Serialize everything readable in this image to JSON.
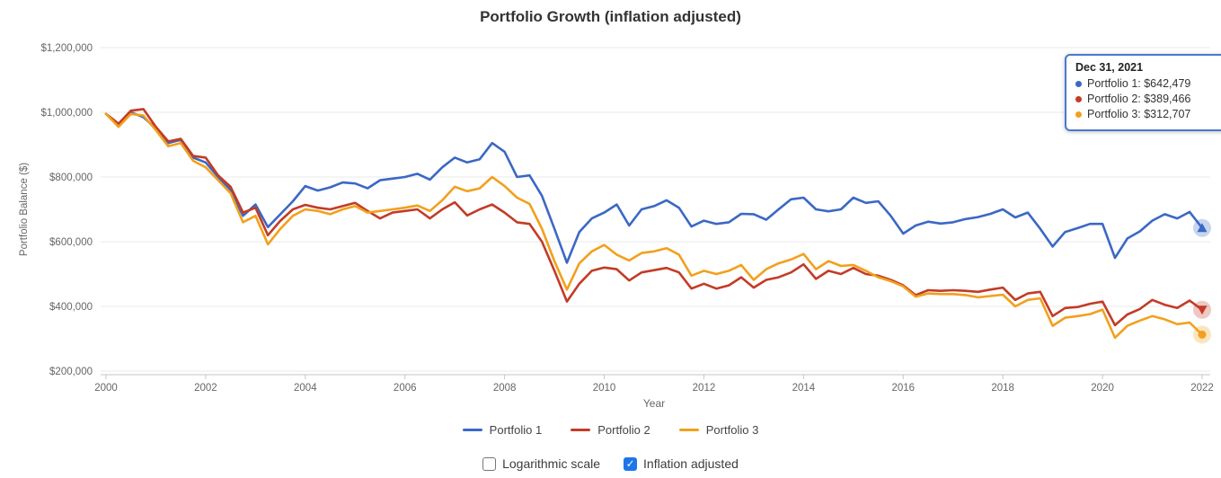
{
  "title": "Portfolio Growth (inflation adjusted)",
  "colors": {
    "grid": "#e8e8e8",
    "axis_line": "#c6c6c6",
    "tick_text": "#666666",
    "tooltip_border": "#4a79cf",
    "checkbox_checked": "#1e76e8"
  },
  "tooltip": {
    "date": "Dec 31, 2021",
    "rows": [
      "Portfolio 1: $642,479",
      "Portfolio 2: $389,466",
      "Portfolio 3: $312,707"
    ]
  },
  "controls": {
    "logarithmic": {
      "label": "Logarithmic scale",
      "checked": false
    },
    "inflation": {
      "label": "Inflation adjusted",
      "checked": true
    }
  },
  "chart_data": {
    "type": "line",
    "title": "Portfolio Growth (inflation adjusted)",
    "xlabel": "Year",
    "ylabel": "Portfolio Balance ($)",
    "xlim": [
      2000,
      2022
    ],
    "ylim": [
      200000,
      1200000
    ],
    "x_start": 2000,
    "x_step": 0.25,
    "x_ticks": [
      2000,
      2002,
      2004,
      2006,
      2008,
      2010,
      2012,
      2014,
      2016,
      2018,
      2020,
      2022
    ],
    "x_tick_labels": [
      "2000",
      "2002",
      "2004",
      "2006",
      "2008",
      "2010",
      "2012",
      "2014",
      "2016",
      "2018",
      "2020",
      "2022"
    ],
    "y_ticks": [
      200000,
      400000,
      600000,
      800000,
      1000000,
      1200000
    ],
    "y_tick_labels": [
      "$200,000",
      "$400,000",
      "$600,000",
      "$800,000",
      "$1,000,000",
      "$1,200,000"
    ],
    "grid": true,
    "legend_position": "bottom",
    "final_date": "Dec 31, 2021",
    "series": [
      {
        "name": "Portfolio 1",
        "color": "#3b68c5",
        "end_marker": "triangle-up",
        "final_value": 642479,
        "values": [
          995000,
          960000,
          1000000,
          985000,
          950000,
          905000,
          915000,
          860000,
          845000,
          800000,
          760000,
          680000,
          715000,
          645000,
          685000,
          725000,
          772000,
          758000,
          768000,
          783000,
          780000,
          765000,
          790000,
          795000,
          800000,
          810000,
          792000,
          830000,
          860000,
          845000,
          855000,
          905000,
          878000,
          800000,
          805000,
          742000,
          640000,
          535000,
          630000,
          672000,
          690000,
          715000,
          650000,
          700000,
          710000,
          728000,
          705000,
          647000,
          665000,
          655000,
          660000,
          686000,
          685000,
          668000,
          700000,
          731000,
          736000,
          700000,
          694000,
          700000,
          736000,
          720000,
          725000,
          680000,
          625000,
          650000,
          662000,
          656000,
          660000,
          670000,
          676000,
          686000,
          700000,
          675000,
          690000,
          640000,
          585000,
          630000,
          642000,
          655000,
          655000,
          550000,
          610000,
          632000,
          665000,
          685000,
          672000,
          692000,
          642479
        ]
      },
      {
        "name": "Portfolio 2",
        "color": "#c33b26",
        "end_marker": "triangle-down",
        "final_value": 389466,
        "values": [
          995000,
          965000,
          1005000,
          1010000,
          955000,
          910000,
          918000,
          865000,
          860000,
          805000,
          770000,
          690000,
          705000,
          620000,
          665000,
          700000,
          714000,
          705000,
          700000,
          710000,
          720000,
          695000,
          672000,
          690000,
          695000,
          700000,
          672000,
          700000,
          722000,
          681000,
          700000,
          715000,
          690000,
          660000,
          655000,
          600000,
          510000,
          415000,
          470000,
          510000,
          520000,
          515000,
          480000,
          505000,
          512000,
          519000,
          505000,
          455000,
          470000,
          455000,
          465000,
          490000,
          458000,
          482000,
          490000,
          505000,
          530000,
          485000,
          510000,
          500000,
          519000,
          500000,
          495000,
          482000,
          465000,
          435000,
          450000,
          448000,
          450000,
          448000,
          445000,
          452000,
          458000,
          420000,
          440000,
          445000,
          370000,
          395000,
          398000,
          408000,
          415000,
          342000,
          375000,
          392000,
          420000,
          405000,
          395000,
          418000,
          389466
        ]
      },
      {
        "name": "Portfolio 3",
        "color": "#f2a01d",
        "end_marker": "circle",
        "final_value": 312707,
        "values": [
          995000,
          955000,
          995000,
          990000,
          945000,
          895000,
          905000,
          850000,
          830000,
          790000,
          750000,
          660000,
          680000,
          592000,
          640000,
          680000,
          700000,
          695000,
          685000,
          700000,
          710000,
          690000,
          695000,
          700000,
          705000,
          712000,
          695000,
          728000,
          770000,
          756000,
          765000,
          800000,
          772000,
          736000,
          717000,
          640000,
          540000,
          452000,
          533000,
          570000,
          590000,
          560000,
          542000,
          565000,
          570000,
          580000,
          560000,
          495000,
          510000,
          500000,
          510000,
          528000,
          482000,
          515000,
          533000,
          545000,
          562000,
          515000,
          540000,
          525000,
          528000,
          510000,
          490000,
          478000,
          462000,
          430000,
          440000,
          438000,
          438000,
          435000,
          428000,
          432000,
          436000,
          400000,
          420000,
          425000,
          340000,
          365000,
          370000,
          376000,
          390000,
          303000,
          340000,
          356000,
          370000,
          360000,
          345000,
          350000,
          312707
        ]
      }
    ]
  }
}
